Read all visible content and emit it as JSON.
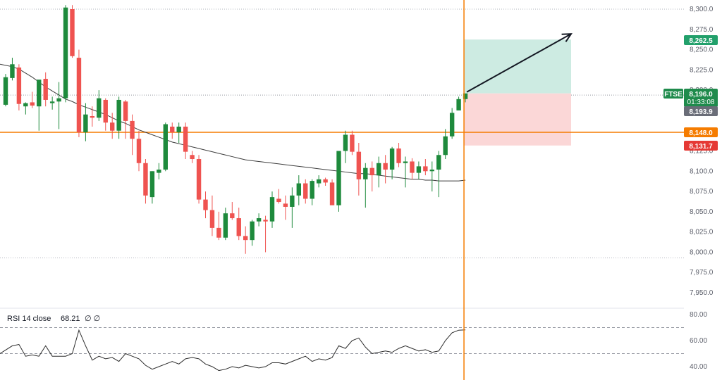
{
  "chart_data": [
    {
      "type": "candlestick",
      "symbol": "FTSE",
      "ylim": [
        7925,
        8310
      ],
      "y_ticks": [
        "8,300.0",
        "8,275.0",
        "8,250.0",
        "8,225.0",
        "8,200.0",
        "8,175.0",
        "8,150.0",
        "8,125.0",
        "8,100.0",
        "8,075.0",
        "8,050.0",
        "8,025.0",
        "8,000.0",
        "7,975.0",
        "7,950.0"
      ],
      "y_tick_values": [
        8300,
        8275,
        8250,
        8225,
        8200,
        8175,
        8150,
        8125,
        8100,
        8075,
        8050,
        8025,
        8000,
        7975,
        7950
      ],
      "dotted_levels": [
        8300,
        7993
      ],
      "horizontal_line": 8148.0,
      "last_price_line": 8193.9,
      "candles": [
        [
          8182,
          8220,
          8180,
          8216
        ],
        [
          8215,
          8240,
          8212,
          8232
        ],
        [
          8228,
          8232,
          8175,
          8183
        ],
        [
          8180,
          8185,
          8170,
          8184
        ],
        [
          8185,
          8198,
          8178,
          8181
        ],
        [
          8180,
          8212,
          8150,
          8213
        ],
        [
          8214,
          8222,
          8180,
          8188
        ],
        [
          8184,
          8192,
          8176,
          8186
        ],
        [
          8186,
          8210,
          8152,
          8190
        ],
        [
          8190,
          8305,
          8185,
          8302
        ],
        [
          8300,
          8305,
          8240,
          8242
        ],
        [
          8240,
          8250,
          8142,
          8148
        ],
        [
          8148,
          8184,
          8137,
          8170
        ],
        [
          8168,
          8180,
          8155,
          8166
        ],
        [
          8166,
          8200,
          8162,
          8190
        ],
        [
          8188,
          8190,
          8150,
          8160
        ],
        [
          8160,
          8172,
          8140,
          8150
        ],
        [
          8150,
          8192,
          8140,
          8188
        ],
        [
          8186,
          8188,
          8140,
          8162
        ],
        [
          8162,
          8170,
          8120,
          8140
        ],
        [
          8140,
          8150,
          8100,
          8110
        ],
        [
          8110,
          8115,
          8060,
          8070
        ],
        [
          8068,
          8100,
          8060,
          8100
        ],
        [
          8098,
          8110,
          8090,
          8102
        ],
        [
          8102,
          8160,
          8100,
          8158
        ],
        [
          8155,
          8160,
          8140,
          8148
        ],
        [
          8148,
          8160,
          8135,
          8155
        ],
        [
          8155,
          8160,
          8115,
          8124
        ],
        [
          8120,
          8125,
          8110,
          8115
        ],
        [
          8115,
          8120,
          8060,
          8065
        ],
        [
          8065,
          8075,
          8042,
          8052
        ],
        [
          8052,
          8070,
          8020,
          8030
        ],
        [
          8030,
          8050,
          8015,
          8018
        ],
        [
          8018,
          8055,
          8015,
          8048
        ],
        [
          8048,
          8062,
          8040,
          8042
        ],
        [
          8042,
          8055,
          8015,
          8020
        ],
        [
          8020,
          8032,
          7998,
          8015
        ],
        [
          8015,
          8040,
          8008,
          8038
        ],
        [
          8038,
          8048,
          8032,
          8042
        ],
        [
          8040,
          8045,
          8000,
          8038
        ],
        [
          8038,
          8075,
          8030,
          8068
        ],
        [
          8066,
          8078,
          8060,
          8062
        ],
        [
          8060,
          8070,
          8040,
          8056
        ],
        [
          8056,
          8080,
          8030,
          8070
        ],
        [
          8070,
          8095,
          8058,
          8085
        ],
        [
          8085,
          8090,
          8060,
          8066
        ],
        [
          8066,
          8090,
          8058,
          8088
        ],
        [
          8085,
          8095,
          8080,
          8090
        ],
        [
          8090,
          8092,
          8082,
          8086
        ],
        [
          8086,
          8090,
          8060,
          8058
        ],
        [
          8058,
          8125,
          8050,
          8125
        ],
        [
          8125,
          8150,
          8110,
          8145
        ],
        [
          8145,
          8150,
          8120,
          8124
        ],
        [
          8124,
          8135,
          8070,
          8090
        ],
        [
          8090,
          8110,
          8055,
          8104
        ],
        [
          8104,
          8112,
          8075,
          8095
        ],
        [
          8095,
          8118,
          8080,
          8110
        ],
        [
          8110,
          8120,
          8085,
          8102
        ],
        [
          8102,
          8130,
          8090,
          8128
        ],
        [
          8128,
          8135,
          8105,
          8110
        ],
        [
          8110,
          8118,
          8080,
          8112
        ],
        [
          8112,
          8116,
          8090,
          8098
        ],
        [
          8098,
          8112,
          8090,
          8106
        ],
        [
          8106,
          8115,
          8095,
          8100
        ],
        [
          8100,
          8112,
          8075,
          8102
        ],
        [
          8102,
          8125,
          8068,
          8120
        ],
        [
          8120,
          8152,
          8115,
          8143
        ],
        [
          8143,
          8178,
          8140,
          8172
        ],
        [
          8175,
          8192,
          8178,
          8189
        ],
        [
          8189,
          8195,
          8185,
          8196
        ]
      ],
      "moving_average": [
        8232,
        8229,
        8226,
        8221,
        8216,
        8210,
        8204,
        8199,
        8194,
        8189,
        8186,
        8182,
        8179,
        8176,
        8173,
        8170,
        8166,
        8162,
        8159,
        8155,
        8151,
        8148,
        8145,
        8142,
        8139,
        8136,
        8134,
        8132,
        8130,
        8128,
        8126,
        8124,
        8122,
        8120,
        8118,
        8116,
        8114,
        8113,
        8112,
        8111,
        8110,
        8109,
        8108,
        8107,
        8106,
        8105,
        8104,
        8103,
        8102,
        8101,
        8100,
        8099,
        8098,
        8097,
        8097,
        8096,
        8095,
        8094,
        8093,
        8092,
        8091,
        8090,
        8090,
        8089,
        8089,
        8088,
        8088,
        8088,
        8088,
        8089
      ],
      "position": {
        "entry": 8196.0,
        "target": 8262.5,
        "stop": 8131.7
      },
      "price_labels": {
        "target": "8,262.5",
        "symbol_tag": "FTSE",
        "current": "8,196.0",
        "countdown": "01:33:08",
        "last": "8,193.9",
        "level": "8,148.0",
        "stop": "8,131.7"
      },
      "colors": {
        "up": "#1e8a3c",
        "down": "#ef5350",
        "ma": "#3d3d3d",
        "level": "#f57c00",
        "target_zone": "#cdebe2",
        "stop_zone": "#fbd7d7",
        "target_tag": "#22a06b",
        "stop_tag": "#e53935",
        "current_tag": "#1f8b4c",
        "last_tag": "#6a6d78"
      }
    },
    {
      "type": "line",
      "title": "RSI 14 close",
      "value_text": "68.21",
      "extra_text": "∅ ∅",
      "ylim": [
        34,
        82
      ],
      "y_ticks": [
        "80.00",
        "60.00",
        "40.00"
      ],
      "y_tick_values": [
        80,
        60,
        40
      ],
      "bands": [
        70,
        50
      ],
      "values": [
        50,
        56,
        57,
        48,
        49,
        48,
        56,
        48,
        48,
        48,
        50,
        68,
        56,
        45,
        48,
        46,
        47,
        44,
        50,
        48,
        46,
        41,
        38,
        40,
        42,
        44,
        42,
        46,
        47,
        46,
        42,
        40,
        37,
        38,
        40,
        39,
        41,
        40,
        39,
        40,
        43,
        43,
        42,
        44,
        46,
        48,
        44,
        46,
        45,
        47,
        56,
        54,
        60,
        62,
        55,
        50,
        51,
        52,
        51,
        54,
        56,
        54,
        52,
        53,
        51,
        52,
        60,
        66,
        68,
        68.21
      ],
      "colors": {
        "line": "#2b2b2b"
      }
    }
  ]
}
